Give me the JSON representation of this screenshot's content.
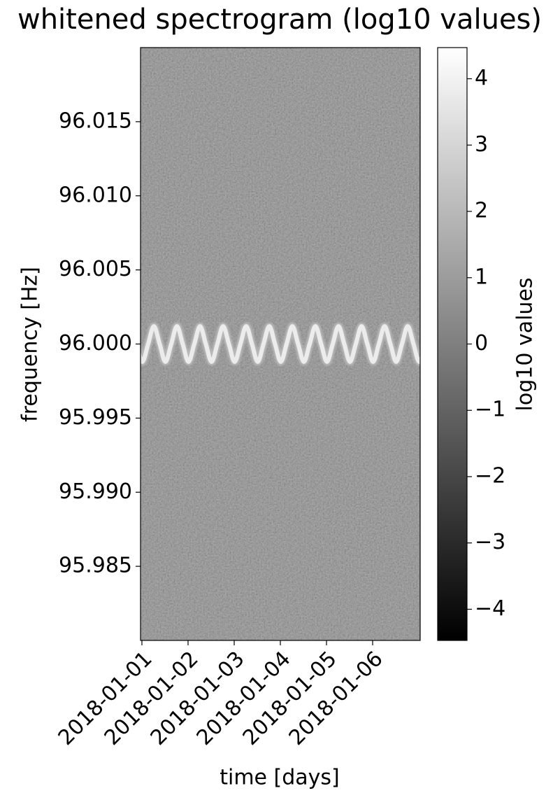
{
  "chart_data": {
    "type": "spectrogram",
    "title": "whitened spectrogram (log10 values)",
    "xlabel": "time [days]",
    "ylabel": "frequency [Hz]",
    "xlim": [
      -0.03,
      6.03
    ],
    "xticks": [
      {
        "value": 0,
        "label": "2018-01-01"
      },
      {
        "value": 1,
        "label": "2018-01-02"
      },
      {
        "value": 2,
        "label": "2018-01-03"
      },
      {
        "value": 3,
        "label": "2018-01-04"
      },
      {
        "value": 4,
        "label": "2018-01-05"
      },
      {
        "value": 5,
        "label": "2018-01-06"
      }
    ],
    "ylim": [
      95.98,
      96.02
    ],
    "yticks": [
      {
        "value": 95.985,
        "label": "95.985"
      },
      {
        "value": 95.99,
        "label": "95.990"
      },
      {
        "value": 95.995,
        "label": "95.995"
      },
      {
        "value": 96,
        "label": "96.000"
      },
      {
        "value": 96.005,
        "label": "96.005"
      },
      {
        "value": 96.01,
        "label": "96.010"
      },
      {
        "value": 96.015,
        "label": "96.015"
      }
    ],
    "background_color": "#7f7f7f",
    "series": [
      {
        "color": "#ececec",
        "x": [
          0.01,
          0.135,
          0.26,
          0.385,
          0.51,
          0.635,
          0.76,
          0.885,
          1.01,
          1.135,
          1.26,
          1.385,
          1.51,
          1.635,
          1.76,
          1.885,
          2.01,
          2.135,
          2.26,
          2.385,
          2.51,
          2.635,
          2.76,
          2.885,
          3.01,
          3.135,
          3.26,
          3.385,
          3.51,
          3.635,
          3.76,
          3.885,
          4.01,
          4.135,
          4.26,
          4.385,
          4.51,
          4.635,
          4.76,
          4.885,
          5.01,
          5.135,
          5.26,
          5.385,
          5.51,
          5.635,
          5.76,
          5.885,
          6.01
        ],
        "values": [
          95.9988,
          96,
          96.0012,
          96,
          95.9988,
          96,
          96.0012,
          96,
          95.9988,
          96,
          96.0012,
          96,
          95.9988,
          96,
          96.0012,
          96,
          95.9988,
          96,
          96.0012,
          96,
          95.9988,
          96,
          96.0012,
          96,
          95.9988,
          96,
          96.0012,
          96,
          95.9988,
          96,
          96.0012,
          96,
          95.9988,
          96,
          96.0012,
          96,
          95.9988,
          96,
          96.0012,
          96,
          95.9988,
          96,
          96.0012,
          96,
          95.9988,
          96,
          96.0012,
          96,
          95.9988
        ]
      }
    ],
    "colorbar": {
      "label": "log10 values",
      "lim": [
        -4.47,
        4.47
      ],
      "colors": [
        "#000000",
        "#ffffff"
      ],
      "ticks": [
        {
          "value": -4,
          "label": "−4"
        },
        {
          "value": -3,
          "label": "−3"
        },
        {
          "value": -2,
          "label": "−2"
        },
        {
          "value": -1,
          "label": "−1"
        },
        0,
        1,
        2,
        3,
        4
      ]
    }
  }
}
